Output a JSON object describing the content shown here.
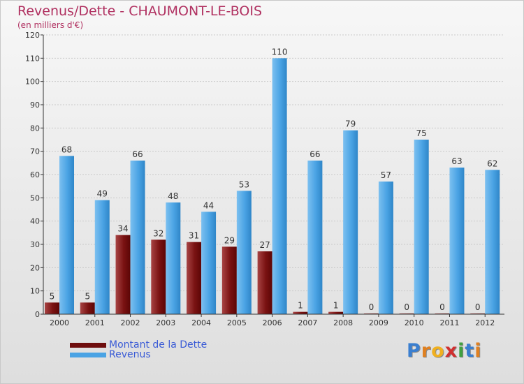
{
  "title": "Revenus/Dette - CHAUMONT-LE-BOIS",
  "subtitle": "(en milliers d'€)",
  "colors": {
    "dette": "#7a1212",
    "revenus": "#4aa3e4",
    "title": "#b03060",
    "legend_text": "#3a5bd6"
  },
  "legend": [
    {
      "label": "Montant de la Dette"
    },
    {
      "label": "Revenus"
    }
  ],
  "logo": {
    "letters": [
      "P",
      "r",
      "o",
      "x",
      "i",
      "t",
      "i"
    ]
  },
  "chart_data": {
    "type": "bar",
    "title": "Revenus/Dette - CHAUMONT-LE-BOIS",
    "ylabel": "(en milliers d'€)",
    "xlabel": "",
    "ylim": [
      0,
      120
    ],
    "yticks": [
      0,
      10,
      20,
      30,
      40,
      50,
      60,
      70,
      80,
      90,
      100,
      110,
      120
    ],
    "grid": true,
    "legend_position": "bottom-left",
    "categories": [
      "2000",
      "2001",
      "2002",
      "2003",
      "2004",
      "2005",
      "2006",
      "2007",
      "2008",
      "2009",
      "2010",
      "2011",
      "2012"
    ],
    "series": [
      {
        "name": "Montant de la Dette",
        "values": [
          5,
          5,
          34,
          32,
          31,
          29,
          27,
          1,
          1,
          0,
          0,
          0,
          0
        ]
      },
      {
        "name": "Revenus",
        "values": [
          68,
          49,
          66,
          48,
          44,
          53,
          110,
          66,
          79,
          57,
          75,
          63,
          62
        ]
      }
    ]
  }
}
